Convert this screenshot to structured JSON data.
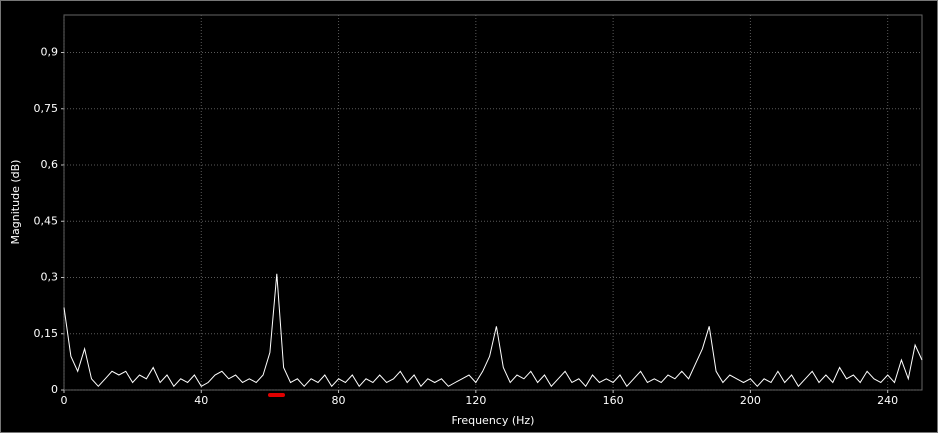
{
  "chart_data": {
    "type": "line",
    "x_label": "Frequency (Hz)",
    "y_label": "Magnitude (dB)",
    "xlim": [
      0,
      250
    ],
    "xticks": [
      0,
      40,
      80,
      120,
      160,
      200,
      240
    ],
    "ylim": [
      0,
      1
    ],
    "yticks": [
      0,
      {
        "value": 0.15,
        "label": "0,15"
      },
      {
        "value": 0.3,
        "label": "0,3"
      },
      {
        "value": 0.45,
        "label": "0,45"
      },
      {
        "value": 0.6,
        "label": "0,6"
      },
      {
        "value": 0.75,
        "label": "0,75"
      },
      {
        "value": 0.9,
        "label": "0,9"
      }
    ],
    "grid": true,
    "x": [
      0,
      2,
      4,
      6,
      8,
      10,
      12,
      14,
      16,
      18,
      20,
      22,
      24,
      26,
      28,
      30,
      32,
      34,
      36,
      38,
      40,
      42,
      44,
      46,
      48,
      50,
      52,
      54,
      56,
      58,
      60,
      62,
      64,
      66,
      68,
      70,
      72,
      74,
      76,
      78,
      80,
      82,
      84,
      86,
      88,
      90,
      92,
      94,
      96,
      98,
      100,
      102,
      104,
      106,
      108,
      110,
      112,
      114,
      116,
      118,
      120,
      122,
      124,
      126,
      128,
      130,
      132,
      134,
      136,
      138,
      140,
      142,
      144,
      146,
      148,
      150,
      152,
      154,
      156,
      158,
      160,
      162,
      164,
      166,
      168,
      170,
      172,
      174,
      176,
      178,
      180,
      182,
      184,
      186,
      188,
      190,
      192,
      194,
      196,
      198,
      200,
      202,
      204,
      206,
      208,
      210,
      212,
      214,
      216,
      218,
      220,
      222,
      224,
      226,
      228,
      230,
      232,
      234,
      236,
      238,
      240,
      242,
      244,
      246,
      248,
      250
    ],
    "series": [
      {
        "color": "#ffffff",
        "values": [
          0.22,
          0.09,
          0.05,
          0.11,
          0.03,
          0.01,
          0.03,
          0.05,
          0.04,
          0.05,
          0.02,
          0.04,
          0.03,
          0.06,
          0.02,
          0.04,
          0.01,
          0.03,
          0.02,
          0.04,
          0.01,
          0.02,
          0.04,
          0.05,
          0.03,
          0.04,
          0.02,
          0.03,
          0.02,
          0.04,
          0.1,
          0.31,
          0.06,
          0.02,
          0.03,
          0.01,
          0.03,
          0.02,
          0.04,
          0.01,
          0.03,
          0.02,
          0.04,
          0.01,
          0.03,
          0.02,
          0.04,
          0.02,
          0.03,
          0.05,
          0.02,
          0.04,
          0.01,
          0.03,
          0.02,
          0.03,
          0.01,
          0.02,
          0.03,
          0.04,
          0.02,
          0.05,
          0.09,
          0.17,
          0.06,
          0.02,
          0.04,
          0.03,
          0.05,
          0.02,
          0.04,
          0.01,
          0.03,
          0.05,
          0.02,
          0.03,
          0.01,
          0.04,
          0.02,
          0.03,
          0.02,
          0.04,
          0.01,
          0.03,
          0.05,
          0.02,
          0.03,
          0.02,
          0.04,
          0.03,
          0.05,
          0.03,
          0.07,
          0.11,
          0.17,
          0.05,
          0.02,
          0.04,
          0.03,
          0.02,
          0.03,
          0.01,
          0.03,
          0.02,
          0.05,
          0.02,
          0.04,
          0.01,
          0.03,
          0.05,
          0.02,
          0.04,
          0.02,
          0.06,
          0.03,
          0.04,
          0.02,
          0.05,
          0.03,
          0.02,
          0.04,
          0.02,
          0.08,
          0.03,
          0.12,
          0.08
        ]
      }
    ]
  }
}
